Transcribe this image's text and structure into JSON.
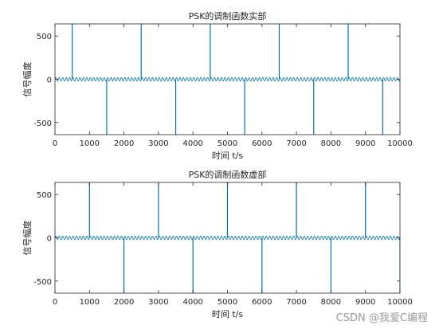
{
  "watermark": "CSDN @我爱C编程",
  "chart_data": [
    {
      "type": "line",
      "title": "PSK的调制函数实部",
      "xlabel": "时间 t/s",
      "ylabel": "信号幅度",
      "xlim": [
        0,
        10000
      ],
      "ylim": [
        -640,
        640
      ],
      "xticks": [
        0,
        1000,
        2000,
        3000,
        4000,
        5000,
        6000,
        7000,
        8000,
        9000,
        10000
      ],
      "yticks": [
        -500,
        0,
        500
      ],
      "color": "#0072BD",
      "baseline_ripple_amplitude": 20,
      "baseline_ripple_period": 100,
      "spikes": [
        {
          "x": 500,
          "y": 640
        },
        {
          "x": 1500,
          "y": -640
        },
        {
          "x": 2500,
          "y": 640
        },
        {
          "x": 3500,
          "y": -640
        },
        {
          "x": 4500,
          "y": 640
        },
        {
          "x": 5500,
          "y": -640
        },
        {
          "x": 6500,
          "y": 640
        },
        {
          "x": 7500,
          "y": -640
        },
        {
          "x": 8500,
          "y": 640
        },
        {
          "x": 9500,
          "y": -640
        }
      ]
    },
    {
      "type": "line",
      "title": "PSK的调制函数虚部",
      "xlabel": "时间 t/s",
      "ylabel": "信号幅度",
      "xlim": [
        0,
        10000
      ],
      "ylim": [
        -640,
        640
      ],
      "xticks": [
        0,
        1000,
        2000,
        3000,
        4000,
        5000,
        6000,
        7000,
        8000,
        9000,
        10000
      ],
      "yticks": [
        -500,
        0,
        500
      ],
      "color": "#0072BD",
      "baseline_ripple_amplitude": 20,
      "baseline_ripple_period": 100,
      "spikes": [
        {
          "x": 1000,
          "y": 640
        },
        {
          "x": 2000,
          "y": -640
        },
        {
          "x": 3000,
          "y": 640
        },
        {
          "x": 4000,
          "y": -640
        },
        {
          "x": 5000,
          "y": 640
        },
        {
          "x": 6000,
          "y": -640
        },
        {
          "x": 7000,
          "y": 640
        },
        {
          "x": 8000,
          "y": -640
        },
        {
          "x": 9000,
          "y": 640
        },
        {
          "x": 10000,
          "y": -640
        }
      ]
    }
  ]
}
